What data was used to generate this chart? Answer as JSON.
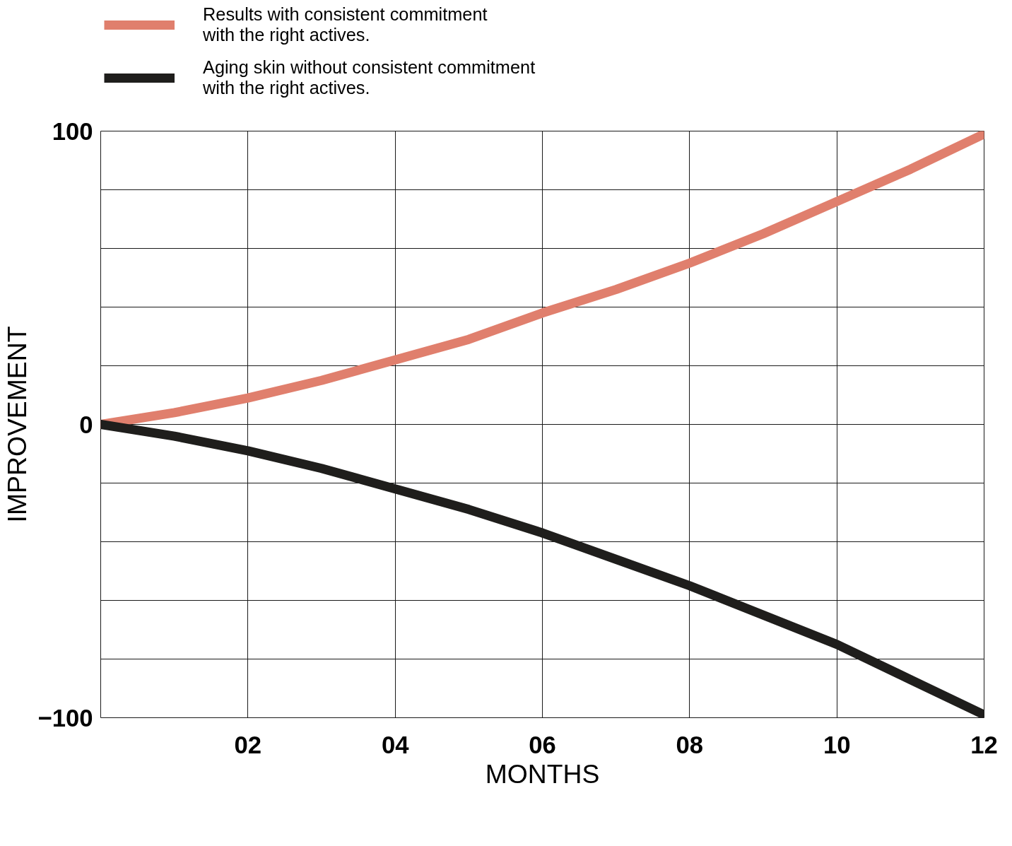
{
  "chart_data": {
    "type": "line",
    "xlabel": "MONTHS",
    "ylabel": "IMPROVEMENT",
    "x": [
      0,
      1,
      2,
      3,
      4,
      5,
      6,
      7,
      8,
      9,
      10,
      11,
      12
    ],
    "series": [
      {
        "name": "Results with consistent commitment\nwith the right actives.",
        "color": "#e07f6d",
        "values": [
          0,
          4,
          9,
          15,
          22,
          29,
          38,
          46,
          55,
          65,
          76,
          87,
          99
        ]
      },
      {
        "name": "Aging skin without consistent commitment\nwith the right actives.",
        "color": "#1f1e1c",
        "values": [
          0,
          -4,
          -9,
          -15,
          -22,
          -29,
          -37,
          -46,
          -55,
          -65,
          -75,
          -87,
          -99
        ]
      }
    ],
    "xlim": [
      0,
      12
    ],
    "ylim": [
      -100,
      100
    ],
    "xticks": [
      {
        "value": 0,
        "label": null
      },
      {
        "value": 2,
        "label": "02"
      },
      {
        "value": 4,
        "label": "04"
      },
      {
        "value": 6,
        "label": "06"
      },
      {
        "value": 8,
        "label": "08"
      },
      {
        "value": 10,
        "label": "10"
      },
      {
        "value": 12,
        "label": "12"
      }
    ],
    "yticks": [
      {
        "value": -100,
        "label": "−100"
      },
      {
        "value": -80,
        "label": null
      },
      {
        "value": -60,
        "label": null
      },
      {
        "value": -40,
        "label": null
      },
      {
        "value": -20,
        "label": null
      },
      {
        "value": 0,
        "label": "0"
      },
      {
        "value": 20,
        "label": null
      },
      {
        "value": 40,
        "label": null
      },
      {
        "value": 60,
        "label": null
      },
      {
        "value": 80,
        "label": null
      },
      {
        "value": 100,
        "label": "100"
      }
    ],
    "grid": true,
    "legend": "top left",
    "line_style": "solid"
  }
}
